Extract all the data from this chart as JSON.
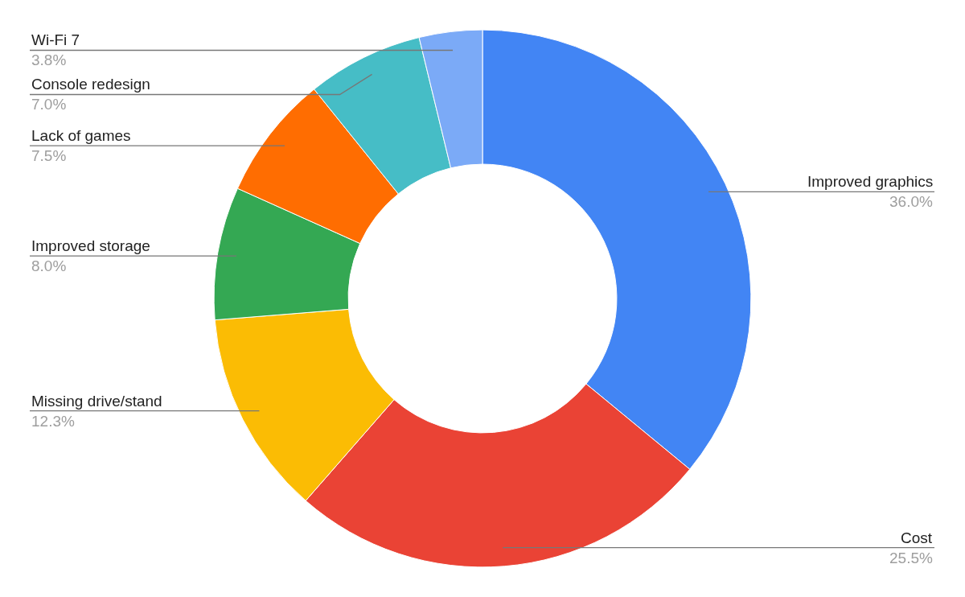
{
  "chart_data": {
    "type": "donut",
    "categories": [
      "Improved graphics",
      "Cost",
      "Missing drive/stand",
      "Improved storage",
      "Lack of games",
      "Console redesign",
      "Wi-Fi 7"
    ],
    "values": [
      36.0,
      25.5,
      12.3,
      8.0,
      7.5,
      7.0,
      3.8
    ],
    "value_labels": [
      "36.0%",
      "25.5%",
      "12.3%",
      "8.0%",
      "7.5%",
      "7.0%",
      "3.8%"
    ],
    "colors": [
      "#4285f4",
      "#ea4335",
      "#fbbc04",
      "#34a853",
      "#ff6d01",
      "#46bdc6",
      "#7baaf7"
    ],
    "legend": false
  }
}
